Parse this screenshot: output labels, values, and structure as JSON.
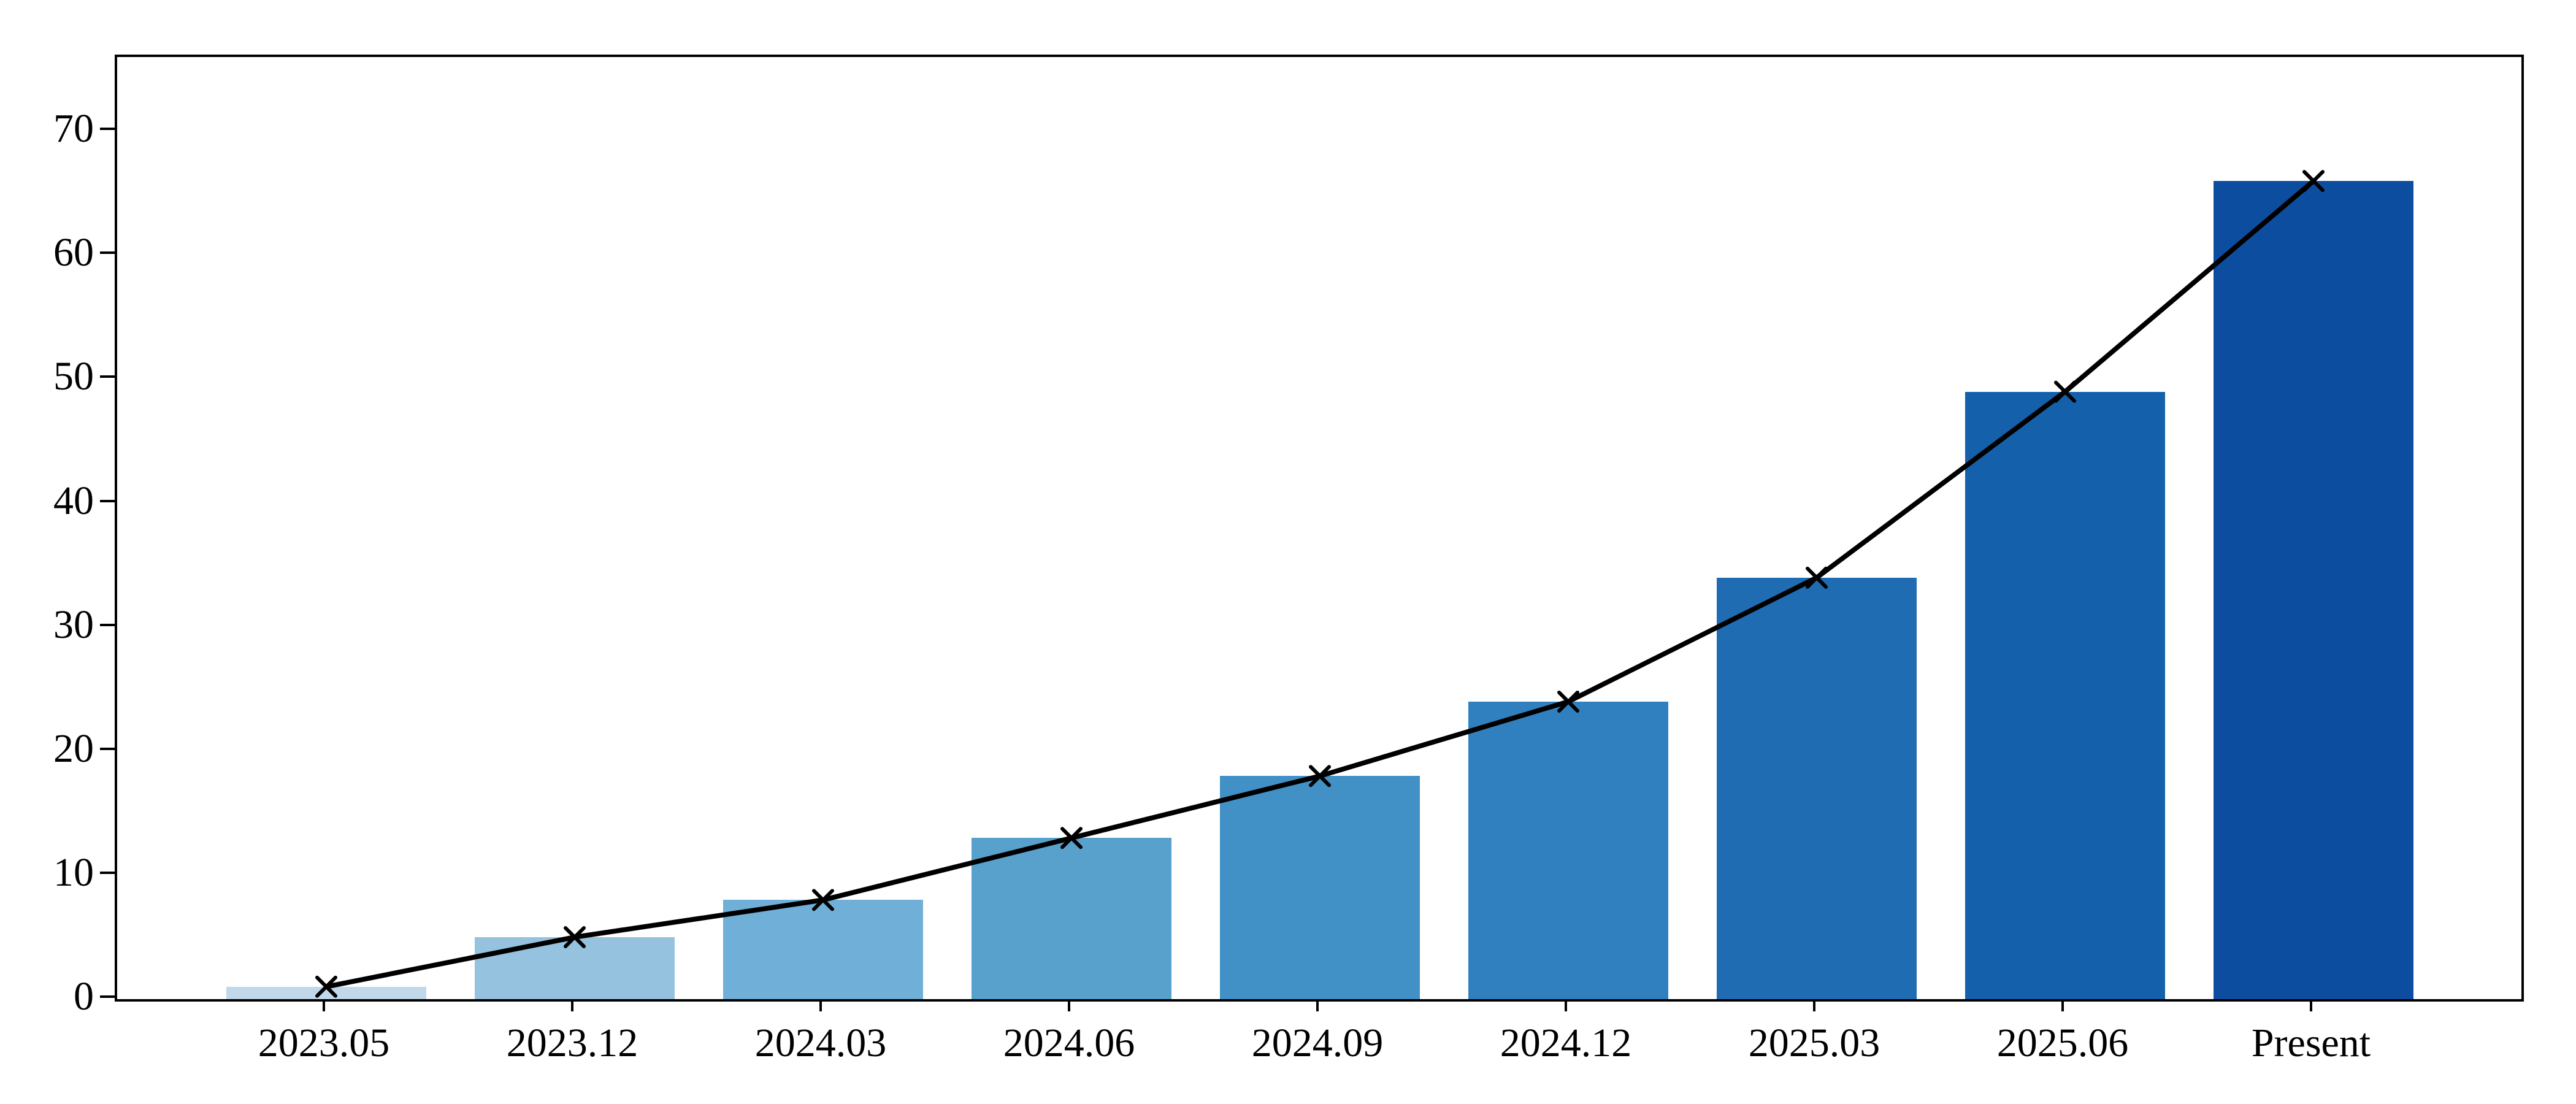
{
  "figure": {
    "background_color": "#ffffff",
    "axis_color": "#000000"
  },
  "chart_data": {
    "type": "bar",
    "overlay": "line",
    "title": "",
    "xlabel": "",
    "ylabel": "",
    "categories": [
      "2023.05",
      "2023.12",
      "2024.03",
      "2024.06",
      "2024.09",
      "2024.12",
      "2025.03",
      "2025.06",
      "Present"
    ],
    "values": [
      1,
      5,
      8,
      13,
      18,
      24,
      34,
      49,
      66
    ],
    "bar_colors": [
      "#c1d8ea",
      "#94c2df",
      "#70afd7",
      "#58a1cd",
      "#4190c6",
      "#3080bf",
      "#1f6cb3",
      "#1460aa",
      "#0d4da0"
    ],
    "line_series": {
      "name": "trend",
      "values": [
        1,
        5,
        8,
        13,
        18,
        24,
        34,
        49,
        66
      ],
      "color": "#000000",
      "marker": "x"
    },
    "y_ticks": [
      0,
      10,
      20,
      30,
      40,
      50,
      60,
      70
    ],
    "ylim": [
      0,
      76
    ],
    "grid": false,
    "legend": null
  }
}
